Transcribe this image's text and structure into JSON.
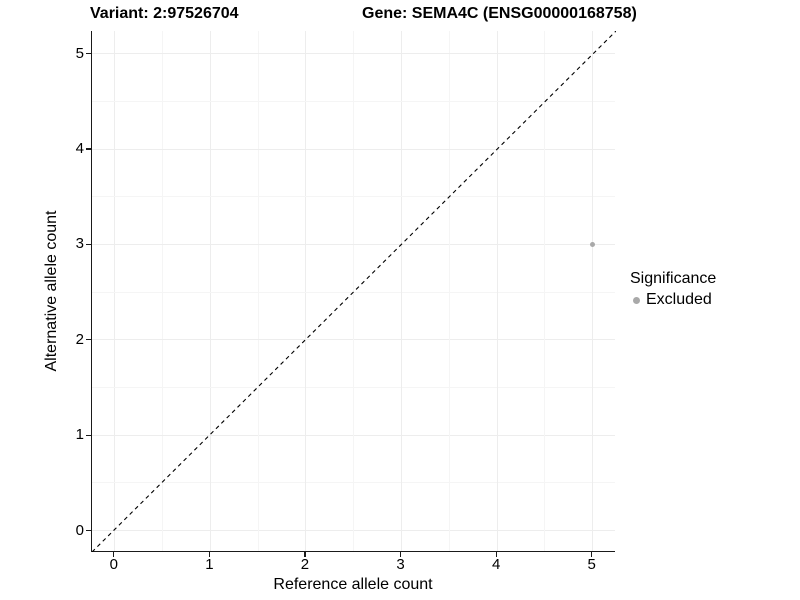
{
  "titles": {
    "variant": "Variant: 2:97526704",
    "gene": "Gene: SEMA4C (ENSG00000168758)"
  },
  "chart_data": {
    "type": "scatter",
    "title_left": "Variant: 2:97526704",
    "title_right": "Gene: SEMA4C (ENSG00000168758)",
    "xlabel": "Reference allele count",
    "ylabel": "Alternative allele count",
    "xlim": [
      -0.24,
      5.24
    ],
    "ylim": [
      -0.24,
      5.24
    ],
    "xticks": [
      0,
      1,
      2,
      3,
      4,
      5
    ],
    "yticks": [
      0,
      1,
      2,
      3,
      4,
      5
    ],
    "minor_gridline_step": 0.5,
    "grid": true,
    "reference_line": {
      "type": "identity",
      "style": "dashed",
      "color": "#000000"
    },
    "series": [
      {
        "name": "Excluded",
        "color": "#a9a9a9",
        "points": [
          {
            "x": 5,
            "y": 3
          }
        ]
      }
    ],
    "legend": {
      "title": "Significance",
      "position": "right",
      "items": [
        {
          "label": "Excluded",
          "color": "#a9a9a9"
        }
      ]
    }
  },
  "colors": {
    "grid_major": "#ededed",
    "grid_minor": "#f5f5f5",
    "axis_line": "#1a1a1a",
    "point_excluded": "#a9a9a9",
    "dashed_line": "#000000"
  }
}
